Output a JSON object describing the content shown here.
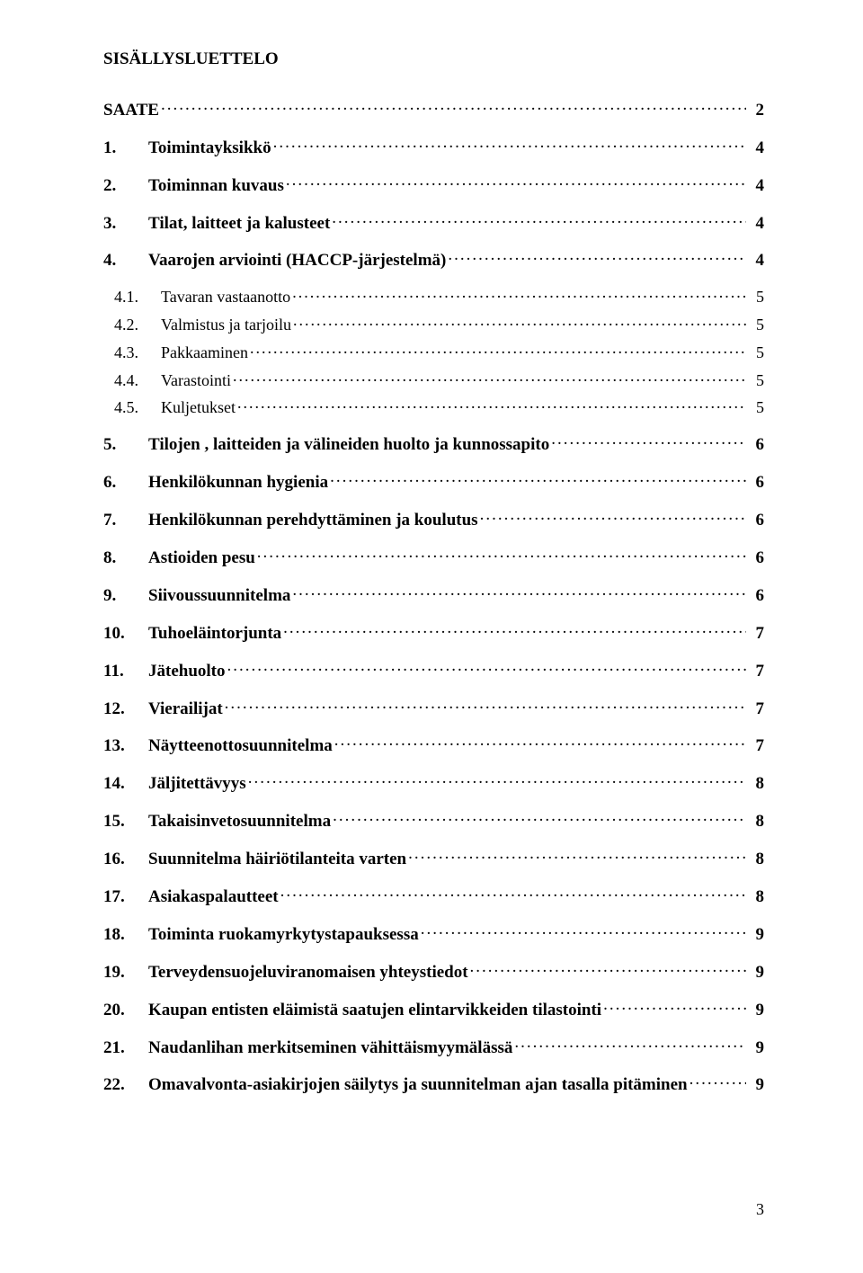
{
  "heading": "SISÄLLYSLUETTELO",
  "page_number": "3",
  "typography": {
    "font_family": "Times New Roman",
    "heading_fontsize_pt": 14,
    "entry_fontsize_pt": 14,
    "bold_entries": true,
    "sub_entries_bold": false,
    "text_color": "#000000",
    "background_color": "#ffffff"
  },
  "toc": [
    {
      "num": "",
      "title": "SAATE",
      "page": "2",
      "level": 0
    },
    {
      "num": "1.",
      "title": "Toimintayksikkö",
      "page": "4",
      "level": 0
    },
    {
      "num": "2.",
      "title": "Toiminnan kuvaus",
      "page": "4",
      "level": 0
    },
    {
      "num": "3.",
      "title": "Tilat, laitteet ja kalusteet",
      "page": "4",
      "level": 0
    },
    {
      "num": "4.",
      "title": "Vaarojen arviointi (HACCP-järjestelmä)",
      "page": "4",
      "level": 0
    },
    {
      "num": "4.1.",
      "title": "Tavaran vastaanotto",
      "page": "5",
      "level": 1
    },
    {
      "num": "4.2.",
      "title": " Valmistus ja tarjoilu",
      "page": "5",
      "level": 1
    },
    {
      "num": "4.3.",
      "title": " Pakkaaminen",
      "page": "5",
      "level": 1
    },
    {
      "num": "4.4.",
      "title": " Varastointi",
      "page": "5",
      "level": 1
    },
    {
      "num": "4.5.",
      "title": " Kuljetukset",
      "page": "5",
      "level": 1,
      "last": true
    },
    {
      "num": "5.",
      "title": "Tilojen , laitteiden ja välineiden huolto ja kunnossapito",
      "page": "6",
      "level": 0
    },
    {
      "num": "6.",
      "title": "Henkilökunnan hygienia",
      "page": "6",
      "level": 0
    },
    {
      "num": "7.",
      "title": "Henkilökunnan perehdyttäminen ja koulutus",
      "page": "6",
      "level": 0
    },
    {
      "num": "8.",
      "title": "Astioiden pesu",
      "page": "6",
      "level": 0
    },
    {
      "num": "9.",
      "title": "Siivoussuunnitelma",
      "page": "6",
      "level": 0
    },
    {
      "num": "10.",
      "title": "Tuhoeläintorjunta",
      "page": "7",
      "level": 0
    },
    {
      "num": "11.",
      "title": "Jätehuolto",
      "page": "7",
      "level": 0
    },
    {
      "num": "12.",
      "title": "Vierailijat",
      "page": "7",
      "level": 0
    },
    {
      "num": "13.",
      "title": "Näytteenottosuunnitelma",
      "page": "7",
      "level": 0
    },
    {
      "num": "14.",
      "title": "Jäljitettävyys",
      "page": "8",
      "level": 0
    },
    {
      "num": "15.",
      "title": "Takaisinvetosuunnitelma",
      "page": "8",
      "level": 0
    },
    {
      "num": "16.",
      "title": "Suunnitelma häiriötilanteita varten",
      "page": "8",
      "level": 0
    },
    {
      "num": "17.",
      "title": "Asiakaspalautteet",
      "page": "8",
      "level": 0
    },
    {
      "num": "18.",
      "title": "Toiminta ruokamyrkytystapauksessa",
      "page": "9",
      "level": 0
    },
    {
      "num": "19.",
      "title": "Terveydensuojeluviranomaisen yhteystiedot",
      "page": "9",
      "level": 0
    },
    {
      "num": "20.",
      "title": "Kaupan entisten eläimistä saatujen elintarvikkeiden tilastointi",
      "page": "9",
      "level": 0
    },
    {
      "num": "21.",
      "title": "Naudanlihan merkitseminen vähittäismyymälässä",
      "page": "9",
      "level": 0
    },
    {
      "num": "22.",
      "title": "Omavalvonta-asiakirjojen säilytys ja suunnitelman ajan tasalla pitäminen",
      "page": "9",
      "level": 0
    }
  ]
}
